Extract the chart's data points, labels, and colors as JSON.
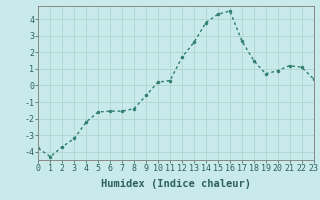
{
  "x": [
    0,
    1,
    2,
    3,
    4,
    5,
    6,
    7,
    8,
    9,
    10,
    11,
    12,
    13,
    14,
    15,
    16,
    17,
    18,
    19,
    20,
    21,
    22,
    23
  ],
  "y": [
    -3.8,
    -4.3,
    -3.7,
    -3.2,
    -2.2,
    -1.6,
    -1.55,
    -1.55,
    -1.4,
    -0.6,
    0.2,
    0.3,
    1.7,
    2.6,
    3.8,
    4.3,
    4.5,
    2.7,
    1.5,
    0.7,
    0.9,
    1.2,
    1.1,
    0.4
  ],
  "xlabel": "Humidex (Indice chaleur)",
  "xlim": [
    0,
    23
  ],
  "ylim": [
    -4.5,
    4.8
  ],
  "yticks": [
    -4,
    -3,
    -2,
    -1,
    0,
    1,
    2,
    3,
    4
  ],
  "xticks": [
    0,
    1,
    2,
    3,
    4,
    5,
    6,
    7,
    8,
    9,
    10,
    11,
    12,
    13,
    14,
    15,
    16,
    17,
    18,
    19,
    20,
    21,
    22,
    23
  ],
  "line_color": "#2e7d6e",
  "bg_color": "#c8eaea",
  "grid_color": "#b0d5d0",
  "tick_color": "#2e6060",
  "xlabel_color": "#2e6060",
  "tick_fontsize": 6.0,
  "xlabel_fontsize": 7.5,
  "marker_size": 2.0,
  "line_width": 1.0
}
